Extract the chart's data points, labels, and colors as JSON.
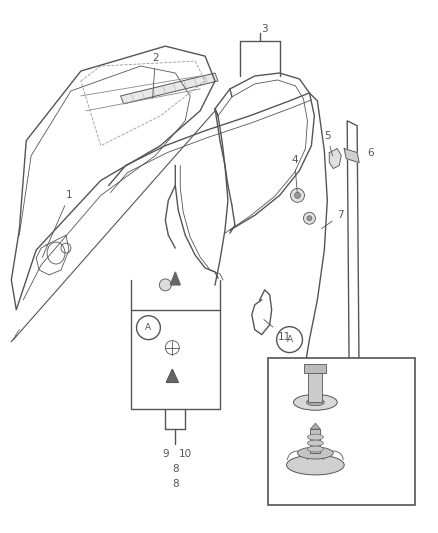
{
  "bg_color": "#ffffff",
  "line_color": "#555555",
  "figsize": [
    4.38,
    5.33
  ],
  "dpi": 100,
  "label_fontsize": 7.5,
  "lw_main": 1.0,
  "lw_thin": 0.6
}
